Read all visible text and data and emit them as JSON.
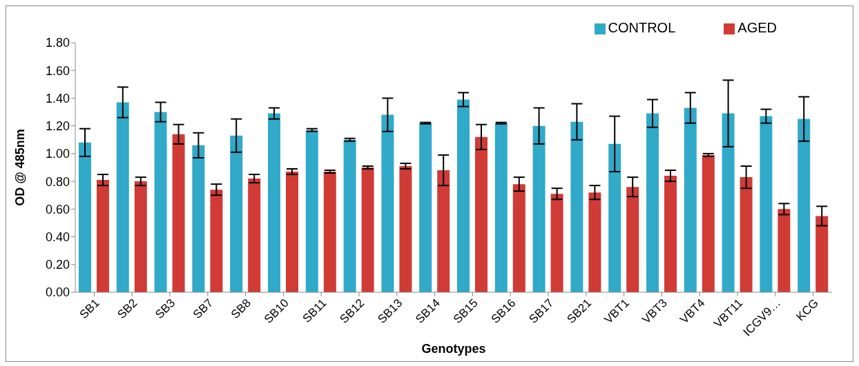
{
  "chart_data": {
    "type": "bar",
    "xlabel": "Genotypes",
    "ylabel": "OD @ 485nm",
    "categories": [
      "SB1",
      "SB2",
      "SB3",
      "SB7",
      "SB8",
      "SB10",
      "SB11",
      "SB12",
      "SB13",
      "SB14",
      "SB15",
      "SB16",
      "SB17",
      "SB21",
      "VBT1",
      "VBT3",
      "VBT4",
      "VBT11",
      "ICGV9…",
      "KCG"
    ],
    "series": [
      {
        "name": "CONTROL",
        "color": "#31a9c8",
        "values": [
          1.08,
          1.37,
          1.3,
          1.06,
          1.13,
          1.29,
          1.17,
          1.1,
          1.28,
          1.22,
          1.39,
          1.22,
          1.2,
          1.23,
          1.07,
          1.29,
          1.33,
          1.29,
          1.27,
          1.25
        ],
        "errors": [
          0.1,
          0.11,
          0.07,
          0.09,
          0.12,
          0.04,
          0.01,
          0.01,
          0.12,
          0.005,
          0.05,
          0.005,
          0.13,
          0.13,
          0.2,
          0.1,
          0.11,
          0.24,
          0.05,
          0.16
        ]
      },
      {
        "name": "AGED",
        "color": "#d03b36",
        "values": [
          0.81,
          0.8,
          1.14,
          0.74,
          0.82,
          0.87,
          0.87,
          0.9,
          0.91,
          0.88,
          1.12,
          0.78,
          0.71,
          0.72,
          0.76,
          0.84,
          0.99,
          0.83,
          0.6,
          0.55
        ],
        "errors": [
          0.04,
          0.03,
          0.07,
          0.04,
          0.03,
          0.02,
          0.01,
          0.01,
          0.02,
          0.11,
          0.09,
          0.05,
          0.04,
          0.05,
          0.07,
          0.04,
          0.01,
          0.08,
          0.04,
          0.07
        ]
      }
    ],
    "ylim": [
      0,
      1.8
    ],
    "yticks": [
      {
        "value": 0,
        "label": "0.00"
      },
      {
        "value": 0.2,
        "label": "0.20"
      },
      {
        "value": 0.4,
        "label": "0.40"
      },
      {
        "value": 0.6,
        "label": "0.60"
      },
      {
        "value": 0.8,
        "label": "0.80"
      },
      {
        "value": 1.0,
        "label": "1.00"
      },
      {
        "value": 1.2,
        "label": "1.20"
      },
      {
        "value": 1.4,
        "label": "1.40"
      },
      {
        "value": 1.6,
        "label": "1.60"
      },
      {
        "value": 1.8,
        "label": "1.80"
      }
    ],
    "grid": false,
    "legend": "top right"
  }
}
